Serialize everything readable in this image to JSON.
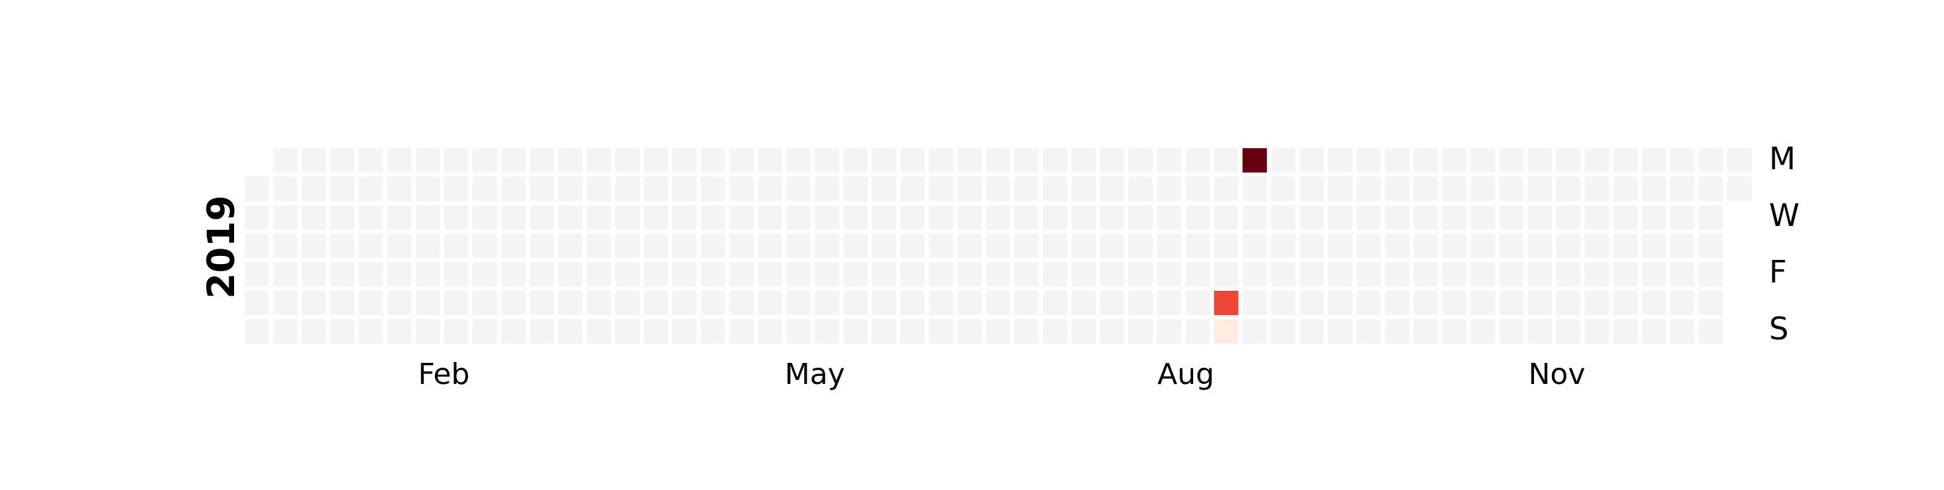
{
  "chart_data": {
    "type": "heatmap",
    "variant": "calendar",
    "year_label": "2019",
    "year": 2019,
    "start_date": "2019-01-01",
    "end_date": "2019-12-31",
    "month_labels": [
      "Feb",
      "May",
      "Aug",
      "Nov"
    ],
    "weekday_labels": [
      "M",
      "W",
      "F",
      "S"
    ],
    "colormap": "Reds",
    "empty_color": "#f4f4f4",
    "values": [
      {
        "date": "2019-08-31",
        "value": 0.75
      },
      {
        "date": "2019-09-01",
        "value": 0.05
      },
      {
        "date": "2019-09-02",
        "value": 1.0
      }
    ],
    "grid": false,
    "legend": "none"
  },
  "colors": {
    "background": "#ffffff",
    "empty_cell": "#f4f4f4",
    "low": "#fff5f0",
    "mid": "#ef4535",
    "high": "#67000d",
    "label": "#000000"
  }
}
